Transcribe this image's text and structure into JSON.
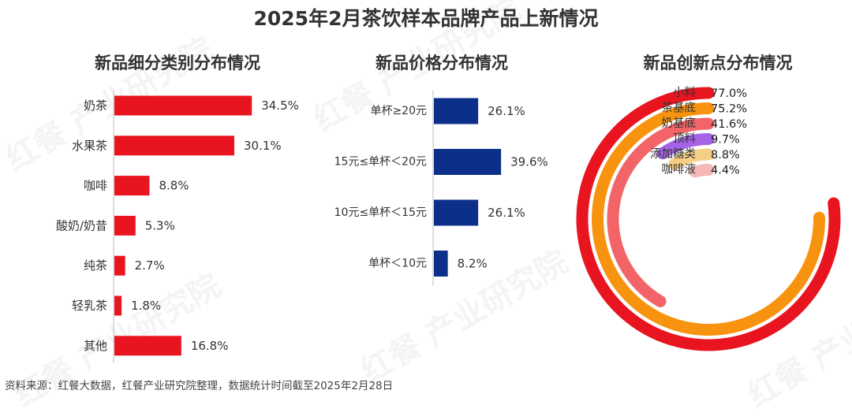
{
  "title": "2025年2月茶饮样本品牌产品上新情况",
  "footer": "资料来源：红餐大数据，红餐产业研究院整理，数据统计时间截至2025年2月28日",
  "watermark": "红餐 产业研究院",
  "colors": {
    "red": "#e8141f",
    "navy": "#0c2f8a",
    "orange": "#f7930e",
    "pink": "#f26468",
    "purple": "#a663e8",
    "peach": "#f6cf86",
    "lightpink": "#f6b7b9"
  },
  "chart_data": [
    {
      "type": "bar",
      "orientation": "horizontal",
      "title": "新品细分类别分布情况",
      "categories": [
        "奶茶",
        "水果茶",
        "咖啡",
        "酸奶/奶昔",
        "纯茶",
        "轻乳茶",
        "其他"
      ],
      "values": [
        34.5,
        30.1,
        8.8,
        5.3,
        2.7,
        1.8,
        16.8
      ],
      "value_labels": [
        "34.5%",
        "30.1%",
        "8.8%",
        "5.3%",
        "2.7%",
        "1.8%",
        "16.8%"
      ],
      "unit": "%",
      "color": "#e8141f"
    },
    {
      "type": "bar",
      "orientation": "horizontal",
      "title": "新品价格分布情况",
      "categories": [
        "单杯≥20元",
        "15元≤单杯＜20元",
        "10元≤单杯＜15元",
        "单杯＜10元"
      ],
      "values": [
        26.1,
        39.6,
        26.1,
        8.2
      ],
      "value_labels": [
        "26.1%",
        "39.6%",
        "26.1%",
        "8.2%"
      ],
      "unit": "%",
      "color": "#0c2f8a"
    },
    {
      "type": "radial_bar",
      "title": "新品创新点分布情况",
      "categories": [
        "小料",
        "茶基底",
        "奶基底",
        "顶料",
        "添加糖类",
        "咖啡液"
      ],
      "values": [
        77.0,
        75.2,
        41.6,
        9.7,
        8.8,
        4.4
      ],
      "value_labels": [
        "77.0%",
        "75.2%",
        "41.6%",
        "9.7%",
        "8.8%",
        "4.4%"
      ],
      "unit": "%",
      "colors": [
        "#e8141f",
        "#f7930e",
        "#f26468",
        "#a663e8",
        "#f6cf86",
        "#f6b7b9"
      ]
    }
  ]
}
